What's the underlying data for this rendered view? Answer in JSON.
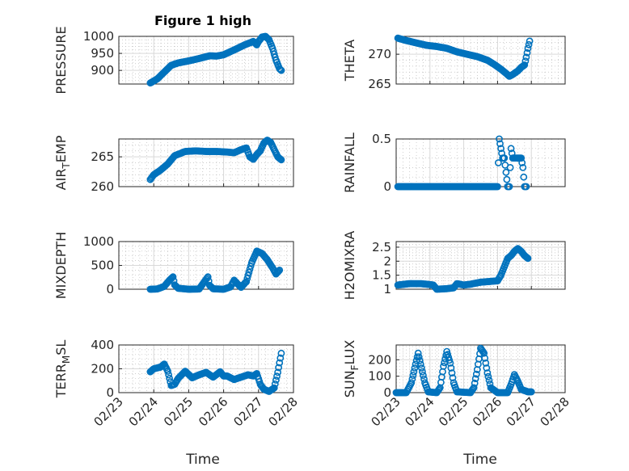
{
  "figure_title": "Figure 1 high",
  "colors": {
    "marker": "#0072BD",
    "axes": "#262626"
  },
  "chart_data": [
    {
      "type": "scatter",
      "name": "pressure",
      "ylabel": "PRESSURE",
      "ylabel_sub": "",
      "ylabel_tail": "",
      "ylim": [
        860,
        1000
      ],
      "yticks": [
        900,
        950,
        1000
      ],
      "xlim": [
        0,
        5
      ],
      "xticks": [
        0,
        1,
        2,
        3,
        4,
        5
      ],
      "xticklabels": [
        "02/23",
        "02/24",
        "02/25",
        "02/26",
        "02/27",
        "02/28"
      ],
      "anchors": [
        [
          0.9,
          863
        ],
        [
          1.1,
          875
        ],
        [
          1.3,
          895
        ],
        [
          1.5,
          915
        ],
        [
          1.7,
          922
        ],
        [
          2.0,
          928
        ],
        [
          2.3,
          935
        ],
        [
          2.6,
          943
        ],
        [
          2.8,
          942
        ],
        [
          3.0,
          946
        ],
        [
          3.3,
          960
        ],
        [
          3.6,
          975
        ],
        [
          3.85,
          985
        ],
        [
          3.95,
          975
        ],
        [
          4.0,
          985
        ],
        [
          4.1,
          998
        ],
        [
          4.2,
          1000
        ],
        [
          4.3,
          990
        ],
        [
          4.4,
          965
        ],
        [
          4.5,
          930
        ],
        [
          4.6,
          905
        ],
        [
          4.65,
          900
        ]
      ]
    },
    {
      "type": "scatter",
      "name": "theta",
      "ylabel": "THETA",
      "ylabel_sub": "",
      "ylabel_tail": "",
      "ylim": [
        265,
        273
      ],
      "yticks": [
        265,
        270
      ],
      "xlim": [
        0,
        5
      ],
      "xticks": [
        0,
        1,
        2,
        3,
        4,
        5
      ],
      "xticklabels": [
        "02/23",
        "02/24",
        "02/25",
        "02/26",
        "02/27",
        "02/28"
      ],
      "anchors": [
        [
          0.05,
          272.7
        ],
        [
          0.3,
          272.3
        ],
        [
          0.6,
          271.9
        ],
        [
          0.9,
          271.5
        ],
        [
          1.2,
          271.3
        ],
        [
          1.5,
          271.0
        ],
        [
          1.8,
          270.4
        ],
        [
          2.1,
          270.0
        ],
        [
          2.4,
          269.6
        ],
        [
          2.7,
          269.0
        ],
        [
          2.9,
          268.3
        ],
        [
          3.1,
          267.5
        ],
        [
          3.25,
          266.8
        ],
        [
          3.35,
          266.3
        ],
        [
          3.45,
          266.6
        ],
        [
          3.6,
          267.2
        ],
        [
          3.7,
          267.8
        ],
        [
          3.8,
          268.2
        ],
        [
          3.85,
          269.5
        ],
        [
          3.9,
          271.0
        ],
        [
          3.95,
          272.2
        ]
      ]
    },
    {
      "type": "scatter",
      "name": "air_temp",
      "ylabel": "AIR",
      "ylabel_sub": "T",
      "ylabel_tail": "EMP",
      "ylim": [
        260,
        268
      ],
      "yticks": [
        260,
        265
      ],
      "xlim": [
        0,
        5
      ],
      "xticks": [
        0,
        1,
        2,
        3,
        4,
        5
      ],
      "xticklabels": [
        "02/23",
        "02/24",
        "02/25",
        "02/26",
        "02/27",
        "02/28"
      ],
      "anchors": [
        [
          0.9,
          261.2
        ],
        [
          1.0,
          262.0
        ],
        [
          1.2,
          262.8
        ],
        [
          1.4,
          263.8
        ],
        [
          1.6,
          265.2
        ],
        [
          1.9,
          265.9
        ],
        [
          2.2,
          266.0
        ],
        [
          2.5,
          265.9
        ],
        [
          2.8,
          265.9
        ],
        [
          3.1,
          265.8
        ],
        [
          3.3,
          265.7
        ],
        [
          3.5,
          266.2
        ],
        [
          3.65,
          266.5
        ],
        [
          3.75,
          265.0
        ],
        [
          3.85,
          264.6
        ],
        [
          3.95,
          265.4
        ],
        [
          4.05,
          266.0
        ],
        [
          4.15,
          267.3
        ],
        [
          4.25,
          267.8
        ],
        [
          4.35,
          267.4
        ],
        [
          4.45,
          266.2
        ],
        [
          4.55,
          265.0
        ],
        [
          4.65,
          264.5
        ]
      ]
    },
    {
      "type": "scatter",
      "name": "rainfall",
      "ylabel": "RAINFALL",
      "ylabel_sub": "",
      "ylabel_tail": "",
      "ylim": [
        0,
        0.5
      ],
      "yticks": [
        0,
        0.5
      ],
      "xlim": [
        0,
        5
      ],
      "xticks": [
        0,
        1,
        2,
        3,
        4,
        5
      ],
      "xticklabels": [
        "02/23",
        "02/24",
        "02/25",
        "02/26",
        "02/27",
        "02/28"
      ],
      "anchors": [
        [
          0.05,
          0
        ],
        [
          3.0,
          0
        ],
        [
          3.05,
          0.5
        ],
        [
          3.1,
          0.4
        ],
        [
          3.15,
          0.3
        ],
        [
          3.2,
          0.3
        ],
        [
          3.3,
          0
        ],
        [
          3.35,
          0
        ],
        [
          3.4,
          0.4
        ],
        [
          3.45,
          0.3
        ],
        [
          3.5,
          0.3
        ],
        [
          3.6,
          0.3
        ],
        [
          3.7,
          0.3
        ],
        [
          3.75,
          0.2
        ],
        [
          3.8,
          0
        ],
        [
          3.85,
          0
        ]
      ]
    },
    {
      "type": "scatter",
      "name": "mixdepth",
      "ylabel": "MIXDEPTH",
      "ylabel_sub": "",
      "ylabel_tail": "",
      "ylim": [
        0,
        1000
      ],
      "yticks": [
        0,
        500,
        1000
      ],
      "xlim": [
        0,
        5
      ],
      "xticks": [
        0,
        1,
        2,
        3,
        4,
        5
      ],
      "xticklabels": [
        "02/23",
        "02/24",
        "02/25",
        "02/26",
        "02/27",
        "02/28"
      ],
      "anchors": [
        [
          0.9,
          0
        ],
        [
          1.1,
          5
        ],
        [
          1.3,
          60
        ],
        [
          1.45,
          190
        ],
        [
          1.55,
          260
        ],
        [
          1.6,
          90
        ],
        [
          1.7,
          20
        ],
        [
          2.0,
          0
        ],
        [
          2.3,
          5
        ],
        [
          2.45,
          160
        ],
        [
          2.55,
          260
        ],
        [
          2.6,
          80
        ],
        [
          2.7,
          10
        ],
        [
          3.0,
          0
        ],
        [
          3.2,
          50
        ],
        [
          3.3,
          190
        ],
        [
          3.4,
          110
        ],
        [
          3.5,
          40
        ],
        [
          3.65,
          160
        ],
        [
          3.8,
          550
        ],
        [
          3.95,
          800
        ],
        [
          4.1,
          750
        ],
        [
          4.25,
          620
        ],
        [
          4.4,
          450
        ],
        [
          4.5,
          320
        ],
        [
          4.6,
          400
        ]
      ]
    },
    {
      "type": "scatter",
      "name": "h2omixra",
      "ylabel": "H2OMIXRA",
      "ylabel_sub": "",
      "ylabel_tail": "",
      "ylim": [
        1,
        2.7
      ],
      "yticks": [
        1,
        1.5,
        2,
        2.5
      ],
      "xlim": [
        0,
        5
      ],
      "xticks": [
        0,
        1,
        2,
        3,
        4,
        5
      ],
      "xticklabels": [
        "02/23",
        "02/24",
        "02/25",
        "02/26",
        "02/27",
        "02/28"
      ],
      "anchors": [
        [
          0.05,
          1.15
        ],
        [
          0.4,
          1.2
        ],
        [
          0.7,
          1.2
        ],
        [
          0.9,
          1.18
        ],
        [
          1.1,
          1.15
        ],
        [
          1.2,
          1.0
        ],
        [
          1.5,
          1.02
        ],
        [
          1.7,
          1.05
        ],
        [
          1.8,
          1.2
        ],
        [
          2.0,
          1.15
        ],
        [
          2.2,
          1.18
        ],
        [
          2.5,
          1.25
        ],
        [
          2.8,
          1.28
        ],
        [
          3.0,
          1.3
        ],
        [
          3.1,
          1.5
        ],
        [
          3.2,
          1.8
        ],
        [
          3.3,
          2.1
        ],
        [
          3.4,
          2.2
        ],
        [
          3.5,
          2.35
        ],
        [
          3.6,
          2.45
        ],
        [
          3.7,
          2.35
        ],
        [
          3.8,
          2.2
        ],
        [
          3.9,
          2.1
        ]
      ]
    },
    {
      "type": "scatter",
      "name": "terr_msl",
      "ylabel": "TERR",
      "ylabel_sub": "M",
      "ylabel_tail": "SL",
      "ylim": [
        0,
        400
      ],
      "yticks": [
        0,
        200,
        400
      ],
      "xlim": [
        0,
        5
      ],
      "xticks": [
        0,
        1,
        2,
        3,
        4,
        5
      ],
      "xticklabels": [
        "02/23",
        "02/24",
        "02/25",
        "02/26",
        "02/27",
        "02/28"
      ],
      "anchors": [
        [
          0.9,
          175
        ],
        [
          1.0,
          200
        ],
        [
          1.2,
          215
        ],
        [
          1.3,
          240
        ],
        [
          1.4,
          180
        ],
        [
          1.5,
          60
        ],
        [
          1.6,
          70
        ],
        [
          1.7,
          120
        ],
        [
          1.9,
          180
        ],
        [
          2.1,
          125
        ],
        [
          2.3,
          150
        ],
        [
          2.5,
          170
        ],
        [
          2.7,
          130
        ],
        [
          2.9,
          175
        ],
        [
          3.0,
          140
        ],
        [
          3.1,
          140
        ],
        [
          3.3,
          110
        ],
        [
          3.5,
          130
        ],
        [
          3.7,
          150
        ],
        [
          3.85,
          140
        ],
        [
          3.95,
          160
        ],
        [
          4.05,
          70
        ],
        [
          4.15,
          30
        ],
        [
          4.3,
          10
        ],
        [
          4.45,
          40
        ],
        [
          4.55,
          170
        ],
        [
          4.65,
          330
        ]
      ]
    },
    {
      "type": "scatter",
      "name": "sunflux",
      "ylabel": "SUN",
      "ylabel_sub": "F",
      "ylabel_tail": "LUX",
      "ylim": [
        0,
        290
      ],
      "yticks": [
        0,
        100,
        200
      ],
      "xlim": [
        0,
        5
      ],
      "xticks": [
        0,
        1,
        2,
        3,
        4,
        5
      ],
      "xticklabels": [
        "02/23",
        "02/24",
        "02/25",
        "02/26",
        "02/27",
        "02/28"
      ],
      "anchors": [
        [
          0.0,
          0
        ],
        [
          0.3,
          0
        ],
        [
          0.45,
          60
        ],
        [
          0.55,
          150
        ],
        [
          0.65,
          240
        ],
        [
          0.75,
          150
        ],
        [
          0.85,
          60
        ],
        [
          0.95,
          5
        ],
        [
          1.2,
          0
        ],
        [
          1.3,
          30
        ],
        [
          1.4,
          160
        ],
        [
          1.5,
          250
        ],
        [
          1.6,
          180
        ],
        [
          1.7,
          60
        ],
        [
          1.8,
          5
        ],
        [
          2.2,
          0
        ],
        [
          2.3,
          30
        ],
        [
          2.4,
          140
        ],
        [
          2.5,
          270
        ],
        [
          2.6,
          240
        ],
        [
          2.7,
          120
        ],
        [
          2.8,
          30
        ],
        [
          3.0,
          0
        ],
        [
          3.3,
          0
        ],
        [
          3.4,
          50
        ],
        [
          3.5,
          110
        ],
        [
          3.6,
          70
        ],
        [
          3.7,
          20
        ],
        [
          3.9,
          5
        ],
        [
          4.0,
          5
        ]
      ]
    }
  ]
}
